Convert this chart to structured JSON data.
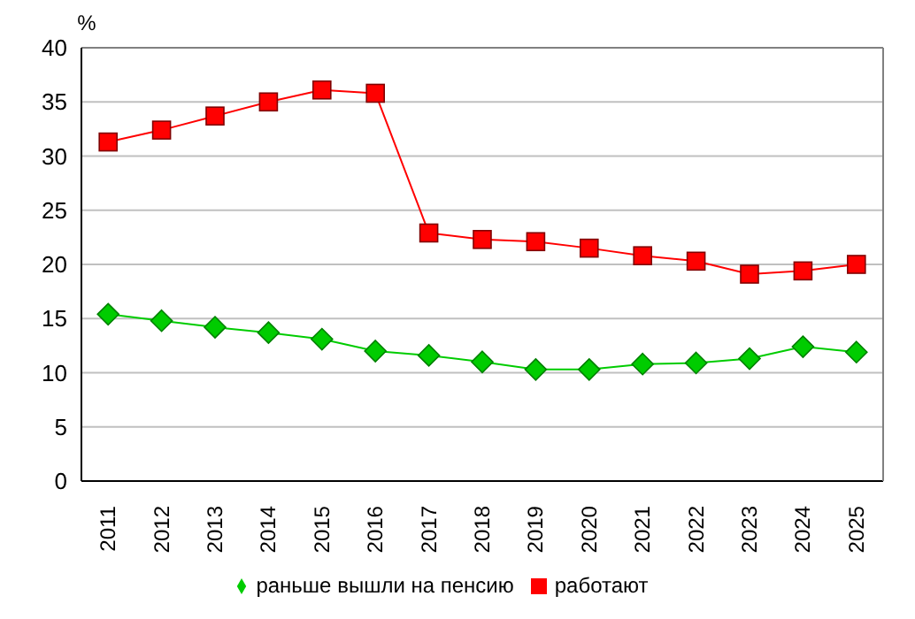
{
  "chart_data": {
    "type": "line",
    "ylabel": "%",
    "categories": [
      "2011",
      "2012",
      "2013",
      "2014",
      "2015",
      "2016",
      "2017",
      "2018",
      "2019",
      "2020",
      "2021",
      "2022",
      "2023",
      "2024",
      "2025"
    ],
    "series": [
      {
        "name": "раньше вышли на пенсию",
        "color": "#00cc00",
        "marker": "diamond",
        "values": [
          15.4,
          14.8,
          14.2,
          13.7,
          13.1,
          12.0,
          11.6,
          11.0,
          10.3,
          10.3,
          10.8,
          10.9,
          11.3,
          12.4,
          11.9
        ]
      },
      {
        "name": "работают",
        "color": "#ff0000",
        "marker": "square",
        "values": [
          31.3,
          32.4,
          33.7,
          35.0,
          36.1,
          35.8,
          22.9,
          22.3,
          22.1,
          21.5,
          20.8,
          20.3,
          19.1,
          19.4,
          20.0
        ]
      }
    ],
    "ylim": [
      0,
      40
    ],
    "yticks": [
      0,
      5,
      10,
      15,
      20,
      25,
      30,
      35,
      40
    ],
    "grid": "y",
    "legend": "bottom"
  }
}
